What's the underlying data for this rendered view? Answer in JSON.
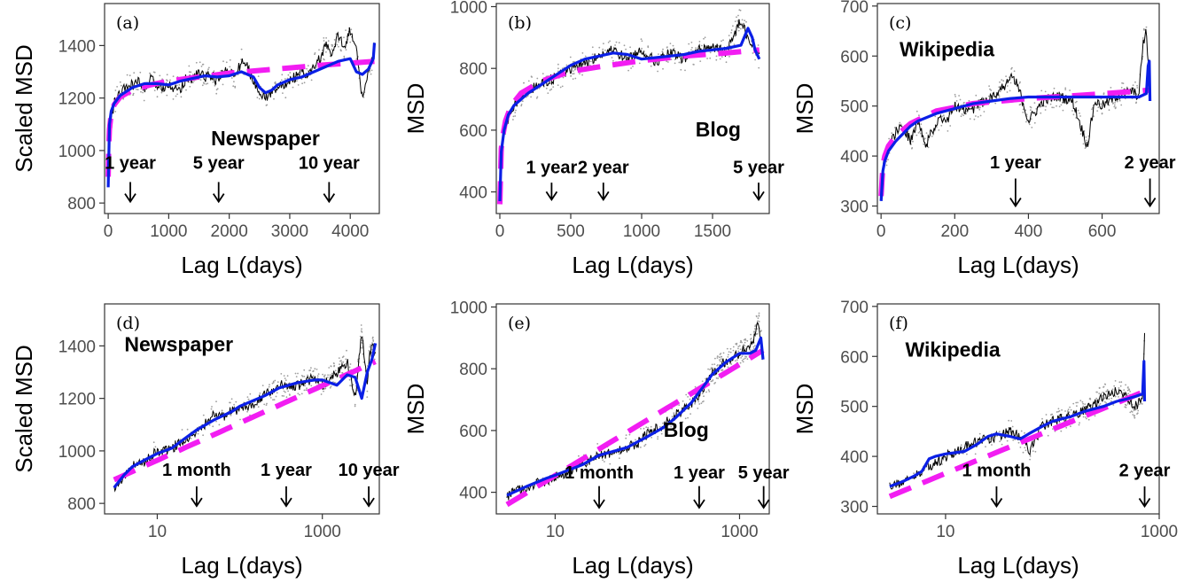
{
  "colors": {
    "raw": "#000000",
    "scatter": "#9e9e9e",
    "smooth": "#0a1fe6",
    "fit": "#f21df2",
    "frame": "#333333"
  },
  "chart_data": [
    {
      "id": "a",
      "tag": "(a)",
      "type": "line",
      "xscale": "linear",
      "xlabel": "Lag L(days)",
      "ylabel": "Scaled MSD",
      "xlim": [
        -60,
        4480
      ],
      "ylim": [
        760,
        1560
      ],
      "xticks": [
        0,
        1000,
        2000,
        3000,
        4000
      ],
      "xtick_labels": [
        "0",
        "1000",
        "2000",
        "3000",
        "4000"
      ],
      "yticks": [
        800,
        1000,
        1200,
        1400
      ],
      "ytick_labels": [
        "800",
        "1000",
        "1200",
        "1400"
      ],
      "label": "Newspaper",
      "label_pos": {
        "x": 1700,
        "y": 1020
      },
      "annotations": [
        {
          "text": "1 year",
          "x": 365,
          "text_y": 930,
          "arrow_top": 880,
          "arrow_bottom": 805
        },
        {
          "text": "5 year",
          "x": 1825,
          "text_y": 930,
          "arrow_top": 880,
          "arrow_bottom": 805
        },
        {
          "text": "10 year",
          "x": 3650,
          "text_y": 930,
          "arrow_top": 880,
          "arrow_bottom": 805
        }
      ],
      "raw": {
        "x": [
          0,
          20,
          50,
          100,
          200,
          300,
          400,
          500,
          600,
          700,
          800,
          900,
          1000,
          1100,
          1200,
          1300,
          1400,
          1500,
          1600,
          1700,
          1800,
          1900,
          2000,
          2100,
          2200,
          2300,
          2400,
          2500,
          2600,
          2700,
          2800,
          2900,
          3000,
          3100,
          3200,
          3300,
          3400,
          3500,
          3600,
          3700,
          3800,
          3900,
          4000,
          4100,
          4200,
          4300,
          4380,
          4400
        ],
        "y": [
          860,
          1050,
          1120,
          1180,
          1220,
          1240,
          1250,
          1260,
          1230,
          1270,
          1250,
          1240,
          1260,
          1230,
          1240,
          1280,
          1270,
          1300,
          1280,
          1290,
          1260,
          1300,
          1310,
          1280,
          1340,
          1320,
          1260,
          1230,
          1200,
          1220,
          1250,
          1240,
          1270,
          1280,
          1300,
          1280,
          1320,
          1350,
          1400,
          1360,
          1440,
          1400,
          1460,
          1380,
          1200,
          1300,
          1350,
          1400
        ]
      },
      "smooth": {
        "x": [
          0,
          20,
          50,
          100,
          200,
          400,
          600,
          800,
          1000,
          1200,
          1400,
          1600,
          1800,
          2000,
          2200,
          2400,
          2500,
          2600,
          2700,
          2800,
          3000,
          3200,
          3400,
          3600,
          3800,
          4000,
          4100,
          4200,
          4300,
          4380,
          4400
        ],
        "y": [
          860,
          1100,
          1150,
          1180,
          1210,
          1240,
          1255,
          1255,
          1250,
          1265,
          1275,
          1285,
          1280,
          1285,
          1300,
          1280,
          1240,
          1220,
          1230,
          1250,
          1270,
          1280,
          1300,
          1320,
          1340,
          1350,
          1300,
          1290,
          1310,
          1350,
          1410
        ]
      },
      "fit": {
        "x": [
          0,
          10,
          20,
          40,
          60,
          100,
          200,
          400,
          700,
          1000,
          1500,
          2000,
          2500,
          3000,
          3500,
          4000,
          4400
        ],
        "y": [
          900,
          1020,
          1080,
          1120,
          1150,
          1175,
          1205,
          1230,
          1250,
          1265,
          1280,
          1295,
          1305,
          1315,
          1325,
          1333,
          1340
        ]
      }
    },
    {
      "id": "b",
      "tag": "(b)",
      "type": "line",
      "xscale": "linear",
      "xlabel": "Lag L(days)",
      "ylabel": "MSD",
      "xlim": [
        -25,
        1900
      ],
      "ylim": [
        330,
        1010
      ],
      "xticks": [
        0,
        500,
        1000,
        1500
      ],
      "xtick_labels": [
        "0",
        "500",
        "1000",
        "1500"
      ],
      "yticks": [
        400,
        600,
        800,
        1000
      ],
      "ytick_labels": [
        "400",
        "600",
        "800",
        "1000"
      ],
      "label": "Blog",
      "label_pos": {
        "x": 1380,
        "y": 580
      },
      "annotations": [
        {
          "text": "1 year",
          "x": 365,
          "text_y": 460,
          "arrow_top": 430,
          "arrow_bottom": 375
        },
        {
          "text": "2 year",
          "x": 730,
          "text_y": 460,
          "arrow_top": 430,
          "arrow_bottom": 375
        },
        {
          "text": "5 year",
          "x": 1825,
          "text_y": 460,
          "arrow_top": 430,
          "arrow_bottom": 375
        }
      ],
      "raw": {
        "x": [
          0,
          20,
          50,
          100,
          150,
          200,
          300,
          400,
          500,
          600,
          700,
          800,
          900,
          1000,
          1100,
          1200,
          1300,
          1400,
          1500,
          1600,
          1700,
          1750,
          1800,
          1830
        ],
        "y": [
          380,
          560,
          630,
          680,
          710,
          730,
          750,
          770,
          800,
          820,
          840,
          860,
          830,
          860,
          820,
          850,
          830,
          860,
          870,
          850,
          960,
          900,
          860,
          840
        ]
      },
      "smooth": {
        "x": [
          0,
          10,
          30,
          60,
          100,
          200,
          300,
          400,
          500,
          600,
          700,
          800,
          900,
          1000,
          1100,
          1200,
          1300,
          1400,
          1500,
          1600,
          1700,
          1750,
          1780,
          1800,
          1830
        ],
        "y": [
          370,
          530,
          600,
          650,
          680,
          720,
          750,
          780,
          810,
          830,
          840,
          850,
          845,
          830,
          835,
          840,
          845,
          855,
          860,
          865,
          875,
          930,
          900,
          860,
          830
        ]
      },
      "fit": {
        "x": [
          0,
          10,
          20,
          40,
          80,
          150,
          300,
          500,
          700,
          1000,
          1300,
          1600,
          1830
        ],
        "y": [
          360,
          540,
          580,
          630,
          680,
          720,
          760,
          790,
          805,
          825,
          840,
          850,
          860
        ]
      }
    },
    {
      "id": "c",
      "tag": "(c)",
      "type": "line",
      "xscale": "linear",
      "xlabel": "Lag L(days)",
      "ylabel": "MSD",
      "xlim": [
        -10,
        755
      ],
      "ylim": [
        285,
        705
      ],
      "xticks": [
        0,
        200,
        400,
        600
      ],
      "xtick_labels": [
        "0",
        "200",
        "400",
        "600"
      ],
      "yticks": [
        300,
        400,
        500,
        600,
        700
      ],
      "ytick_labels": [
        "300",
        "400",
        "500",
        "600",
        "700"
      ],
      "label": "Wikipedia",
      "label_pos": {
        "x": 50,
        "y": 600
      },
      "annotations": [
        {
          "text": "1 year",
          "x": 365,
          "text_y": 375,
          "arrow_top": 355,
          "arrow_bottom": 300
        },
        {
          "text": "2 year",
          "x": 730,
          "text_y": 375,
          "arrow_top": 355,
          "arrow_bottom": 300
        }
      ],
      "raw": {
        "x": [
          0,
          5,
          10,
          20,
          40,
          60,
          80,
          100,
          120,
          140,
          160,
          180,
          200,
          240,
          280,
          320,
          360,
          380,
          400,
          440,
          480,
          520,
          560,
          580,
          600,
          640,
          680,
          700,
          710,
          720,
          730
        ],
        "y": [
          330,
          380,
          400,
          410,
          450,
          460,
          430,
          470,
          420,
          450,
          480,
          470,
          500,
          490,
          510,
          530,
          560,
          520,
          470,
          510,
          520,
          510,
          420,
          510,
          500,
          520,
          530,
          520,
          620,
          650,
          520
        ]
      },
      "smooth": {
        "x": [
          0,
          5,
          10,
          20,
          40,
          60,
          80,
          100,
          150,
          200,
          250,
          300,
          350,
          400,
          450,
          500,
          550,
          600,
          650,
          700,
          720,
          725,
          728,
          730
        ],
        "y": [
          310,
          370,
          390,
          410,
          430,
          445,
          460,
          470,
          485,
          495,
          505,
          510,
          515,
          518,
          518,
          518,
          518,
          518,
          518,
          518,
          525,
          580,
          590,
          510
        ]
      },
      "fit": {
        "x": [
          0,
          5,
          10,
          20,
          40,
          80,
          150,
          250,
          400,
          550,
          700,
          730
        ],
        "y": [
          320,
          380,
          400,
          420,
          440,
          465,
          490,
          505,
          515,
          522,
          530,
          532
        ]
      }
    },
    {
      "id": "d",
      "tag": "(d)",
      "type": "line",
      "xscale": "log",
      "xlabel": "Lag L(days)",
      "ylabel": "Scaled MSD",
      "xlim": [
        2.3,
        4900
      ],
      "ylim": [
        760,
        1560
      ],
      "xticks": [
        10,
        1000
      ],
      "xtick_labels": [
        "10",
        "1000"
      ],
      "yticks": [
        800,
        1000,
        1200,
        1400
      ],
      "ytick_labels": [
        "800",
        "1000",
        "1200",
        "1400"
      ],
      "label": "Newspaper",
      "label_pos": {
        "x": 4,
        "y": 1380
      },
      "annotations": [
        {
          "text": "1 month",
          "x": 30,
          "text_y": 905,
          "arrow_top": 865,
          "arrow_bottom": 790
        },
        {
          "text": "1 year",
          "x": 365,
          "text_y": 905,
          "arrow_top": 865,
          "arrow_bottom": 790
        },
        {
          "text": "10 year",
          "x": 3650,
          "text_y": 905,
          "arrow_top": 865,
          "arrow_bottom": 790
        }
      ],
      "raw": {
        "x": [
          3,
          5,
          7,
          10,
          15,
          20,
          30,
          40,
          50,
          60,
          80,
          100,
          150,
          200,
          300,
          500,
          800,
          1000,
          1500,
          2000,
          2500,
          3000,
          3500,
          3650,
          4000,
          4400
        ],
        "y": [
          860,
          940,
          960,
          1000,
          1010,
          1040,
          1080,
          1110,
          1150,
          1130,
          1150,
          1160,
          1180,
          1220,
          1250,
          1250,
          1280,
          1250,
          1300,
          1340,
          1200,
          1450,
          1250,
          1350,
          1400,
          1380
        ]
      },
      "smooth": {
        "x": [
          3,
          4,
          5,
          7,
          10,
          15,
          20,
          30,
          50,
          80,
          100,
          200,
          300,
          500,
          800,
          1000,
          1500,
          2000,
          2500,
          3000,
          3500,
          4000,
          4400
        ],
        "y": [
          860,
          910,
          940,
          965,
          990,
          1010,
          1040,
          1080,
          1120,
          1150,
          1170,
          1210,
          1240,
          1260,
          1270,
          1270,
          1250,
          1290,
          1280,
          1200,
          1300,
          1350,
          1410
        ]
      },
      "fit": {
        "x": [
          3,
          4400
        ],
        "y": [
          890,
          1340
        ]
      }
    },
    {
      "id": "e",
      "tag": "(e)",
      "type": "line",
      "xscale": "log",
      "xlabel": "Lag L(days)",
      "ylabel": "MSD",
      "xlim": [
        2.3,
        2100
      ],
      "ylim": [
        330,
        1010
      ],
      "xticks": [
        10,
        1000
      ],
      "xtick_labels": [
        "10",
        "1000"
      ],
      "yticks": [
        400,
        600,
        800,
        1000
      ],
      "ytick_labels": [
        "400",
        "600",
        "800",
        "1000"
      ],
      "label": "Blog",
      "label_pos": {
        "x": 150,
        "y": 580
      },
      "annotations": [
        {
          "text": "1 month",
          "x": 30,
          "text_y": 445,
          "arrow_top": 420,
          "arrow_bottom": 350
        },
        {
          "text": "1 year",
          "x": 365,
          "text_y": 445,
          "arrow_top": 420,
          "arrow_bottom": 350
        },
        {
          "text": "5 year",
          "x": 1825,
          "text_y": 445,
          "arrow_top": 420,
          "arrow_bottom": 350
        }
      ],
      "raw": {
        "x": [
          3,
          5,
          10,
          20,
          30,
          50,
          80,
          100,
          150,
          200,
          300,
          400,
          500,
          600,
          800,
          1000,
          1200,
          1400,
          1600,
          1800
        ],
        "y": [
          390,
          420,
          450,
          490,
          520,
          540,
          560,
          590,
          620,
          650,
          690,
          730,
          780,
          810,
          830,
          850,
          870,
          880,
          960,
          840
        ]
      },
      "smooth": {
        "x": [
          3,
          5,
          8,
          10,
          20,
          30,
          40,
          60,
          80,
          100,
          150,
          200,
          300,
          400,
          500,
          700,
          1000,
          1300,
          1500,
          1700,
          1800
        ],
        "y": [
          390,
          420,
          445,
          455,
          490,
          520,
          530,
          545,
          565,
          580,
          610,
          640,
          690,
          740,
          780,
          820,
          850,
          850,
          860,
          900,
          830
        ]
      },
      "fit": {
        "x": [
          3,
          1800
        ],
        "y": [
          360,
          860
        ]
      }
    },
    {
      "id": "f",
      "tag": "(f)",
      "type": "line",
      "xscale": "log",
      "xlabel": "Lag L(days)",
      "ylabel": "MSD",
      "xlim": [
        2.3,
        1000
      ],
      "ylim": [
        285,
        705
      ],
      "xticks": [
        10,
        1000
      ],
      "xtick_labels": [
        "10",
        "1000"
      ],
      "yticks": [
        300,
        400,
        500,
        600,
        700
      ],
      "ytick_labels": [
        "300",
        "400",
        "500",
        "600",
        "700"
      ],
      "label": "Wikipedia",
      "label_pos": {
        "x": 4.2,
        "y": 600
      },
      "annotations": [
        {
          "text": "1 month",
          "x": 30,
          "text_y": 360,
          "arrow_top": 340,
          "arrow_bottom": 300
        },
        {
          "text": "2 year",
          "x": 730,
          "text_y": 360,
          "arrow_top": 340,
          "arrow_bottom": 300
        }
      ],
      "raw": {
        "x": [
          3,
          5,
          7,
          10,
          15,
          20,
          30,
          40,
          50,
          60,
          80,
          100,
          150,
          200,
          300,
          400,
          500,
          600,
          700,
          720,
          730
        ],
        "y": [
          340,
          360,
          380,
          400,
          420,
          430,
          440,
          450,
          440,
          410,
          460,
          470,
          480,
          490,
          520,
          530,
          520,
          500,
          520,
          600,
          650
        ]
      },
      "smooth": {
        "x": [
          3,
          4,
          5,
          6,
          7,
          8,
          10,
          15,
          20,
          25,
          30,
          40,
          50,
          60,
          80,
          100,
          150,
          200,
          300,
          400,
          500,
          600,
          700,
          710,
          720,
          730
        ],
        "y": [
          340,
          350,
          360,
          370,
          395,
          400,
          405,
          410,
          425,
          440,
          445,
          440,
          435,
          445,
          460,
          470,
          480,
          490,
          500,
          510,
          515,
          520,
          525,
          560,
          590,
          510
        ]
      },
      "fit": {
        "x": [
          3,
          730
        ],
        "y": [
          320,
          530
        ]
      }
    }
  ]
}
